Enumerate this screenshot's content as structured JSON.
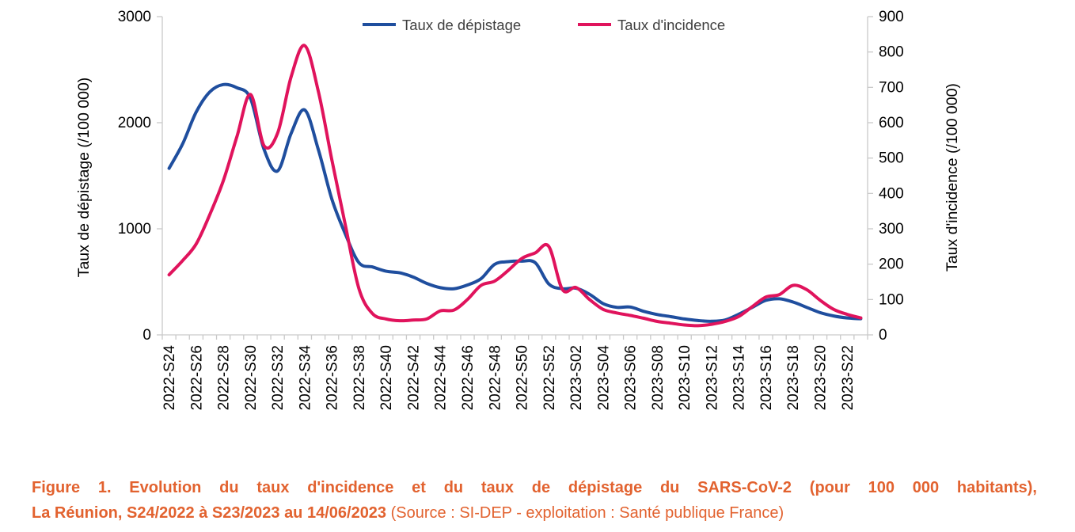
{
  "figure": {
    "caption_line1": "Figure 1. Evolution du taux d'incidence et du taux de dépistage du SARS-CoV-2 (pour 100 000 habitants),",
    "caption_line2_bold": "La Réunion, S24/2022 à S23/2023 au 14/06/2023",
    "caption_line2_source": " (Source : SI-DEP - exploitation : Santé publique France)"
  },
  "chart_data": {
    "type": "line",
    "title": "",
    "x": [
      "2022-S24",
      "2022-S25",
      "2022-S26",
      "2022-S27",
      "2022-S28",
      "2022-S29",
      "2022-S30",
      "2022-S31",
      "2022-S32",
      "2022-S33",
      "2022-S34",
      "2022-S35",
      "2022-S36",
      "2022-S37",
      "2022-S38",
      "2022-S39",
      "2022-S40",
      "2022-S41",
      "2022-S42",
      "2022-S43",
      "2022-S44",
      "2022-S45",
      "2022-S46",
      "2022-S47",
      "2022-S48",
      "2022-S49",
      "2022-S50",
      "2022-S51",
      "2022-S52",
      "2023-S01",
      "2023-S02",
      "2023-S03",
      "2023-S04",
      "2023-S05",
      "2023-S06",
      "2023-S07",
      "2023-S08",
      "2023-S09",
      "2023-S10",
      "2023-S11",
      "2023-S12",
      "2023-S13",
      "2023-S14",
      "2023-S15",
      "2023-S16",
      "2023-S17",
      "2023-S18",
      "2023-S19",
      "2023-S20",
      "2023-S21",
      "2023-S22",
      "2023-S23"
    ],
    "x_tick_label_every": 2,
    "series": [
      {
        "name": "Taux de dépistage",
        "axis": "left",
        "color": "#1F4E9E",
        "smooth": true,
        "values": [
          1570,
          1800,
          2100,
          2290,
          2360,
          2330,
          2230,
          1750,
          1545,
          1900,
          2120,
          1750,
          1280,
          950,
          680,
          640,
          600,
          585,
          545,
          485,
          445,
          435,
          470,
          530,
          665,
          690,
          695,
          680,
          480,
          435,
          440,
          383,
          295,
          260,
          263,
          222,
          192,
          172,
          150,
          135,
          128,
          140,
          195,
          260,
          325,
          340,
          310,
          260,
          210,
          178,
          160,
          152
        ]
      },
      {
        "name": "Taux d'incidence",
        "axis": "right",
        "color": "#E0135C",
        "smooth": true,
        "values": [
          170,
          210,
          257,
          340,
          436,
          560,
          680,
          535,
          570,
          730,
          818,
          690,
          495,
          310,
          130,
          60,
          45,
          40,
          42,
          45,
          68,
          70,
          100,
          140,
          152,
          182,
          216,
          232,
          250,
          128,
          134,
          100,
          72,
          62,
          55,
          47,
          38,
          33,
          28,
          26,
          30,
          38,
          52,
          80,
          107,
          114,
          140,
          128,
          98,
          72,
          58,
          48
        ]
      }
    ],
    "left_axis": {
      "label": "Taux de dépistage (/100 000)",
      "min": 0,
      "max": 3000,
      "step": 1000,
      "ticks": [
        0,
        1000,
        2000,
        3000
      ]
    },
    "right_axis": {
      "label": "Taux d'incidence (/100 000)",
      "min": 0,
      "max": 900,
      "step": 100,
      "ticks": [
        0,
        100,
        200,
        300,
        400,
        500,
        600,
        700,
        800,
        900
      ]
    },
    "legend": {
      "position": "top-center",
      "entries": [
        "Taux de dépistage",
        "Taux d'incidence"
      ]
    },
    "grid": false,
    "background": "#FFFFFF"
  },
  "colors": {
    "axis_line": "#C9C9C9",
    "tick_label": "#000000",
    "legend_text": "#3F3F3F",
    "caption": "#E2622F"
  }
}
